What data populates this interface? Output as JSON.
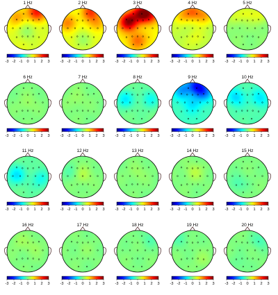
{
  "figure": {
    "panels": [
      {
        "label": "1 Hz",
        "hot": [
          [
            0.35,
            0.85,
            0.7
          ],
          [
            -0.55,
            0.55,
            0.45
          ],
          [
            0.55,
            0.75,
            0.4
          ],
          [
            0.0,
            -0.1,
            -0.25
          ]
        ],
        "base": 0.55
      },
      {
        "label": "2 Hz",
        "hot": [
          [
            0.35,
            0.85,
            0.85
          ],
          [
            -0.7,
            0.3,
            0.6
          ],
          [
            0.7,
            0.3,
            0.45
          ],
          [
            0.0,
            -0.5,
            -0.2
          ]
        ],
        "base": 0.55
      },
      {
        "label": "3 Hz",
        "hot": [
          [
            -0.45,
            0.35,
            1.35
          ],
          [
            0.15,
            0.75,
            1.05
          ],
          [
            0.55,
            0.7,
            0.9
          ],
          [
            0.0,
            -0.55,
            0.55
          ]
        ],
        "base": 0.75
      },
      {
        "label": "4 Hz",
        "hot": [
          [
            0.0,
            0.85,
            0.7
          ],
          [
            -0.55,
            0.65,
            0.4
          ],
          [
            0.55,
            0.65,
            0.55
          ],
          [
            0.15,
            -0.45,
            0.15
          ]
        ],
        "base": 0.35
      },
      {
        "label": "5 Hz",
        "hot": [
          [
            0.0,
            0.8,
            0.3
          ],
          [
            -0.6,
            0.6,
            0.25
          ],
          [
            0.6,
            0.65,
            0.3
          ]
        ],
        "base": 0.05
      },
      {
        "label": "6 Hz",
        "hot": [
          [
            0.0,
            0.0,
            0.1
          ]
        ],
        "base": 0.0
      },
      {
        "label": "7 Hz",
        "hot": [
          [
            -0.3,
            0.2,
            0.1
          ]
        ],
        "base": 0.0
      },
      {
        "label": "8 Hz",
        "hot": [
          [
            -0.6,
            0.2,
            -0.45
          ],
          [
            0.6,
            0.2,
            -0.35
          ]
        ],
        "base": -0.1
      },
      {
        "label": "9 Hz",
        "hot": [
          [
            -0.5,
            0.65,
            -0.55
          ],
          [
            0.55,
            0.55,
            -0.65
          ],
          [
            0.2,
            0.85,
            -0.95
          ],
          [
            0.0,
            0.0,
            -0.3
          ]
        ],
        "base": -0.4
      },
      {
        "label": "10 Hz",
        "hot": [
          [
            -0.55,
            0.3,
            -0.45
          ],
          [
            0.6,
            0.25,
            -0.4
          ]
        ],
        "base": -0.25
      },
      {
        "label": "11 Hz",
        "hot": [
          [
            -0.55,
            0.1,
            -0.45
          ],
          [
            0.6,
            -0.1,
            -0.3
          ]
        ],
        "base": -0.15
      },
      {
        "label": "12 Hz",
        "hot": [
          [
            0.0,
            0.1,
            0.2
          ],
          [
            -0.6,
            0.2,
            -0.15
          ]
        ],
        "base": 0.0
      },
      {
        "label": "13 Hz",
        "hot": [
          [
            0.0,
            0.2,
            0.1
          ]
        ],
        "base": 0.0
      },
      {
        "label": "14 Hz",
        "hot": [
          [
            0.1,
            0.25,
            0.2
          ]
        ],
        "base": 0.0
      },
      {
        "label": "15 Hz",
        "hot": [
          [
            -0.5,
            -0.3,
            -0.2
          ]
        ],
        "base": 0.0
      },
      {
        "label": "16 Hz",
        "hot": [
          [
            0.3,
            0.2,
            0.1
          ],
          [
            -0.4,
            0.5,
            0.1
          ]
        ],
        "base": 0.0
      },
      {
        "label": "17 Hz",
        "hot": [
          [
            0.1,
            0.1,
            0.05
          ]
        ],
        "base": 0.0
      },
      {
        "label": "18 Hz",
        "hot": [
          [
            0.6,
            0.6,
            -0.15
          ]
        ],
        "base": 0.0
      },
      {
        "label": "19 Hz",
        "hot": [
          [
            -0.6,
            0.6,
            -0.15
          ],
          [
            0.5,
            -0.4,
            0.1
          ]
        ],
        "base": 0.0
      },
      {
        "label": "20 Hz",
        "hot": [
          [
            0.6,
            0.5,
            -0.2
          ],
          [
            -0.4,
            -0.6,
            -0.1
          ]
        ],
        "base": 0.0
      }
    ],
    "colorbar": {
      "ticks": [
        "-3",
        "-2",
        "-1",
        "0",
        "1",
        "2",
        "3"
      ],
      "min": -3,
      "max": 3
    },
    "colors": {
      "head_outline": "#000000",
      "nose_ears": "#5a3a3a",
      "electrode": "#000000"
    }
  }
}
